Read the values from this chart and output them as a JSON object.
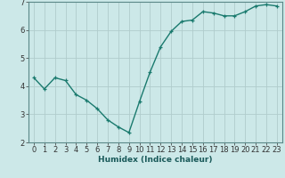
{
  "x": [
    0,
    1,
    2,
    3,
    4,
    5,
    6,
    7,
    8,
    9,
    10,
    11,
    12,
    13,
    14,
    15,
    16,
    17,
    18,
    19,
    20,
    21,
    22,
    23
  ],
  "y": [
    4.3,
    3.9,
    4.3,
    4.2,
    3.7,
    3.5,
    3.2,
    2.8,
    2.55,
    2.35,
    3.45,
    4.5,
    5.4,
    5.95,
    6.3,
    6.35,
    6.65,
    6.6,
    6.5,
    6.5,
    6.65,
    6.85,
    6.9,
    6.85
  ],
  "line_color": "#1a7a6e",
  "marker": "+",
  "background_color": "#cce8e8",
  "grid_color": "#b0cccc",
  "xlabel": "Humidex (Indice chaleur)",
  "ylim": [
    2,
    7
  ],
  "xlim": [
    -0.5,
    23.5
  ],
  "yticks": [
    2,
    3,
    4,
    5,
    6,
    7
  ],
  "xticks": [
    0,
    1,
    2,
    3,
    4,
    5,
    6,
    7,
    8,
    9,
    10,
    11,
    12,
    13,
    14,
    15,
    16,
    17,
    18,
    19,
    20,
    21,
    22,
    23
  ],
  "xlabel_fontsize": 6.5,
  "tick_fontsize": 6.0,
  "linewidth": 1.0,
  "markersize": 3.5,
  "markeredgewidth": 0.9
}
